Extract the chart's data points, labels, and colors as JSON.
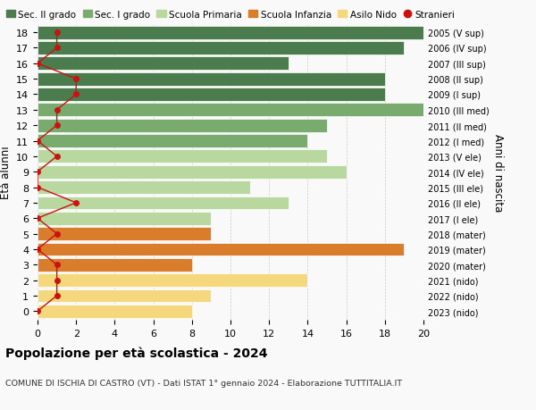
{
  "ages": [
    18,
    17,
    16,
    15,
    14,
    13,
    12,
    11,
    10,
    9,
    8,
    7,
    6,
    5,
    4,
    3,
    2,
    1,
    0
  ],
  "right_labels": [
    "2005 (V sup)",
    "2006 (IV sup)",
    "2007 (III sup)",
    "2008 (II sup)",
    "2009 (I sup)",
    "2010 (III med)",
    "2011 (II med)",
    "2012 (I med)",
    "2013 (V ele)",
    "2014 (IV ele)",
    "2015 (III ele)",
    "2016 (II ele)",
    "2017 (I ele)",
    "2018 (mater)",
    "2019 (mater)",
    "2020 (mater)",
    "2021 (nido)",
    "2022 (nido)",
    "2023 (nido)"
  ],
  "bar_values": [
    20,
    19,
    13,
    18,
    18,
    20,
    15,
    14,
    15,
    16,
    11,
    13,
    9,
    9,
    19,
    8,
    14,
    9,
    8
  ],
  "bar_colors": [
    "#4a7c4e",
    "#4a7c4e",
    "#4a7c4e",
    "#4a7c4e",
    "#4a7c4e",
    "#7aab6e",
    "#7aab6e",
    "#7aab6e",
    "#b8d8a0",
    "#b8d8a0",
    "#b8d8a0",
    "#b8d8a0",
    "#b8d8a0",
    "#d97c2b",
    "#d97c2b",
    "#d97c2b",
    "#f5d87e",
    "#f5d87e",
    "#f5d87e"
  ],
  "stranieri_values": [
    1,
    1,
    0,
    2,
    2,
    1,
    1,
    0,
    1,
    0,
    0,
    2,
    0,
    1,
    0,
    1,
    1,
    1,
    0
  ],
  "legend_labels": [
    "Sec. II grado",
    "Sec. I grado",
    "Scuola Primaria",
    "Scuola Infanzia",
    "Asilo Nido",
    "Stranieri"
  ],
  "legend_colors": [
    "#4a7c4e",
    "#7aab6e",
    "#b8d8a0",
    "#d97c2b",
    "#f5d87e",
    "#cc1111"
  ],
  "title": "Popolazione per età scolastica - 2024",
  "subtitle": "COMUNE DI ISCHIA DI CASTRO (VT) - Dati ISTAT 1° gennaio 2024 - Elaborazione TUTTITALIA.IT",
  "ylabel_left": "Età alunni",
  "ylabel_right": "Anni di nascita",
  "xlim": [
    0,
    20
  ],
  "xticks": [
    0,
    2,
    4,
    6,
    8,
    10,
    12,
    14,
    16,
    18,
    20
  ],
  "background_color": "#f9f9f9",
  "grid_color": "#cccccc"
}
